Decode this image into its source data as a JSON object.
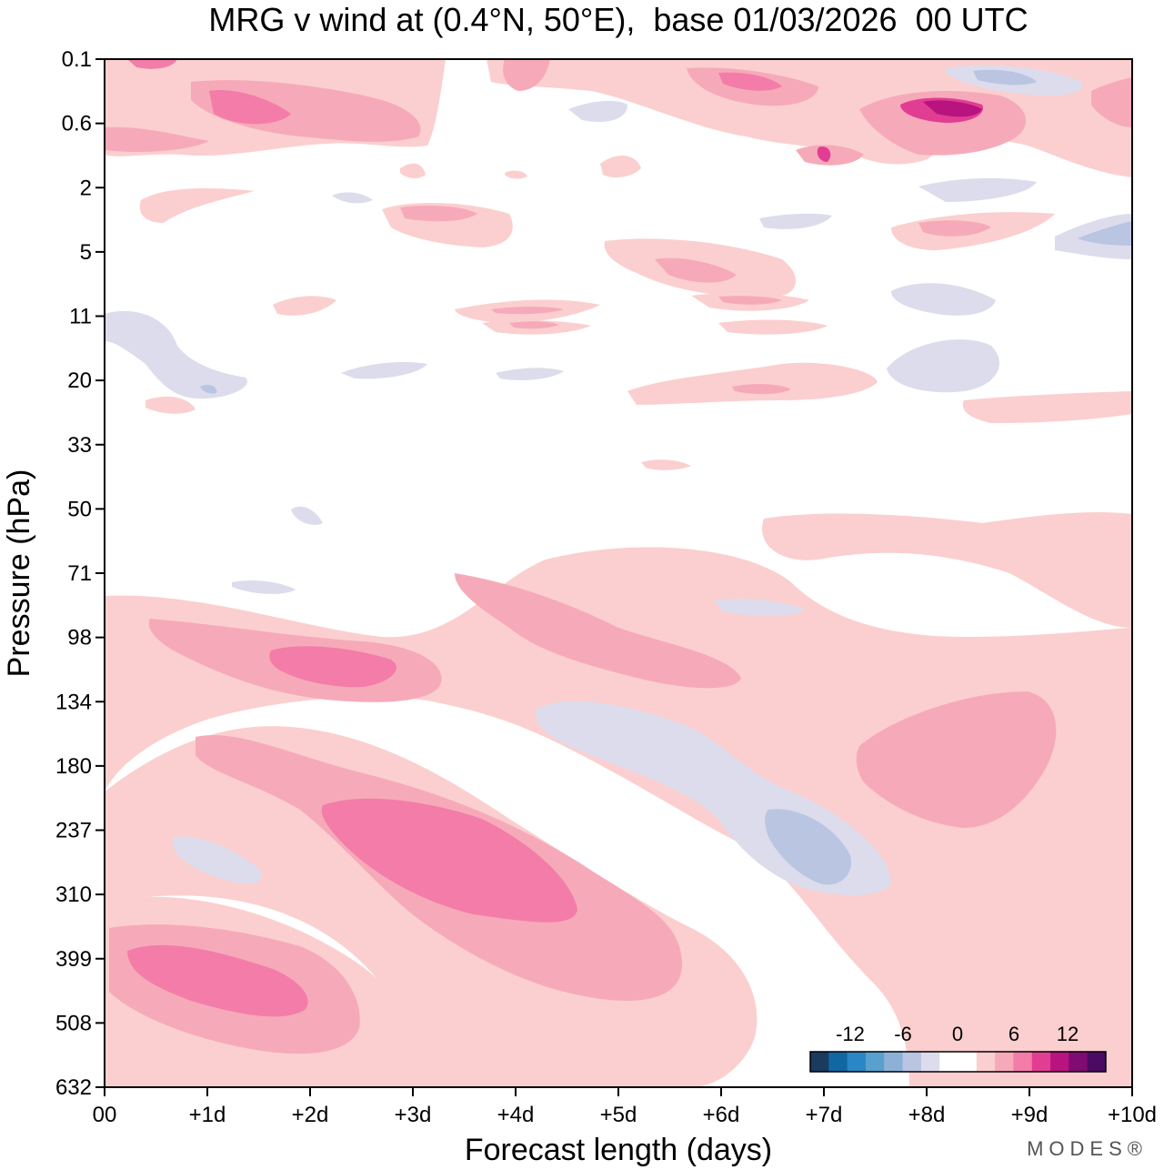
{
  "chart_data": {
    "type": "heatmap",
    "title": "MRG v wind at (0.4°N, 50°E),  base 01/03/2026  00 UTC",
    "xlabel": "Forecast length (days)",
    "ylabel": "Pressure (hPa)",
    "x_ticks": [
      "00",
      "+1d",
      "+2d",
      "+3d",
      "+4d",
      "+5d",
      "+6d",
      "+7d",
      "+8d",
      "+9d",
      "+10d"
    ],
    "y_ticks": [
      "0.1",
      "0.6",
      "2",
      "5",
      "11",
      "20",
      "33",
      "50",
      "71",
      "98",
      "134",
      "180",
      "237",
      "310",
      "399",
      "508",
      "632"
    ],
    "xlim": [
      0,
      10
    ],
    "ylim_hPa": [
      0.1,
      632
    ],
    "colorbar": {
      "labels": [
        "-12",
        "-6",
        "0",
        "6",
        "12"
      ],
      "colors": [
        "#1a3a5e",
        "#1167a1",
        "#2a86c4",
        "#5aa0cf",
        "#8db1d6",
        "#b9c5e1",
        "#dcdcec",
        "#ffffff",
        "#ffffff",
        "#fbcfcf",
        "#f6aab9",
        "#f37da8",
        "#e13d93",
        "#b8137f",
        "#7f0b73",
        "#4b0a63"
      ]
    },
    "anomalies": [
      {
        "name": "upper-stratosphere positive 0.2-0.6 hPa, +1d to +2.5d",
        "sign": "+",
        "peak": 6
      },
      {
        "name": "upper-stratosphere positive 0.4-1 hPa, +8d",
        "sign": "+",
        "peak": 12
      },
      {
        "name": "upper-stratosphere negative near 0.2 hPa, +8.5d to +9.5d",
        "sign": "-",
        "peak": -4
      },
      {
        "name": "middle-level positive 98-134 hPa, +0.5d to +3d",
        "sign": "+",
        "peak": 6
      },
      {
        "name": "tropospheric positive 180-310 hPa, +2d to +5d",
        "sign": "+",
        "peak": 6
      },
      {
        "name": "tropospheric negative 134-310 hPa, +4d to +7.5d",
        "sign": "-",
        "peak": -4
      },
      {
        "name": "lower positive 399-508 hPa, +0.2d to +2d",
        "sign": "+",
        "peak": 6
      },
      {
        "name": "tropospheric positive 134-237 hPa, +7.5d to +9.5d",
        "sign": "+",
        "peak": 4
      }
    ]
  },
  "brand": "MODES®"
}
